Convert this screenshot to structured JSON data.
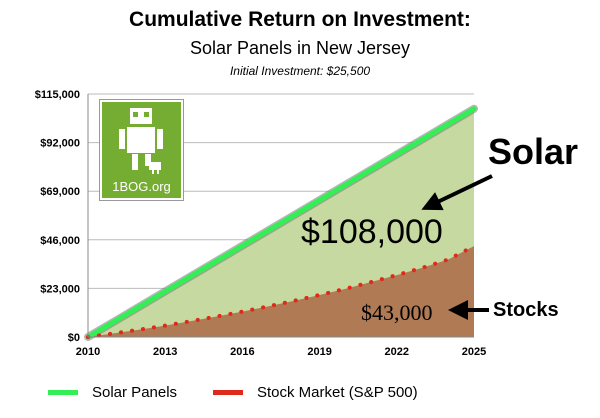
{
  "header": {
    "title": "Cumulative Return on Investment:",
    "subtitle": "Solar Panels in New Jersey",
    "note": "Initial Investment: $25,500"
  },
  "logo": {
    "text": "1BOG.org",
    "icon": "robot-plug-icon",
    "color": "#74ad32"
  },
  "legend": {
    "solar_label": "Solar Panels",
    "stock_label": "Stock Market (S&P 500)",
    "placement": "bottom"
  },
  "annotations": {
    "solar_label": "Solar",
    "solar_value": "$108,000",
    "stock_label": "Stocks",
    "stock_value": "$43,000"
  },
  "colors": {
    "solar_line": "#33ee55",
    "solar_fill": "#c6d9a0",
    "stock_line": "#dd2a1a",
    "stock_fill": "#b07a55",
    "grid": "#bbbbbb"
  },
  "chart_data": {
    "type": "area",
    "x": [
      2010,
      2011,
      2012,
      2013,
      2014,
      2015,
      2016,
      2017,
      2018,
      2019,
      2020,
      2021,
      2022,
      2023,
      2024,
      2025
    ],
    "xticks": [
      2010,
      2013,
      2016,
      2019,
      2022,
      2025
    ],
    "xtick_labels": [
      "2010",
      "2013",
      "2016",
      "2019",
      "2022",
      "2025"
    ],
    "yticks": [
      0,
      23000,
      46000,
      69000,
      92000,
      115000
    ],
    "ytick_labels": [
      "$0",
      "$23,000",
      "$46,000",
      "$69,000",
      "$92,000",
      "$115,000"
    ],
    "xlim": [
      2010,
      2025
    ],
    "ylim": [
      0,
      115000
    ],
    "grid": true,
    "series": [
      {
        "name": "Solar Panels",
        "values": [
          0,
          7200,
          14400,
          21600,
          28800,
          36000,
          43200,
          50400,
          57600,
          64800,
          72000,
          79200,
          86400,
          93600,
          100800,
          108000
        ]
      },
      {
        "name": "Stock Market (S&P 500)",
        "values": [
          0,
          1700,
          3500,
          5400,
          7500,
          9700,
          12000,
          14500,
          17100,
          19900,
          22800,
          26000,
          29300,
          32800,
          36700,
          43000
        ]
      }
    ]
  }
}
